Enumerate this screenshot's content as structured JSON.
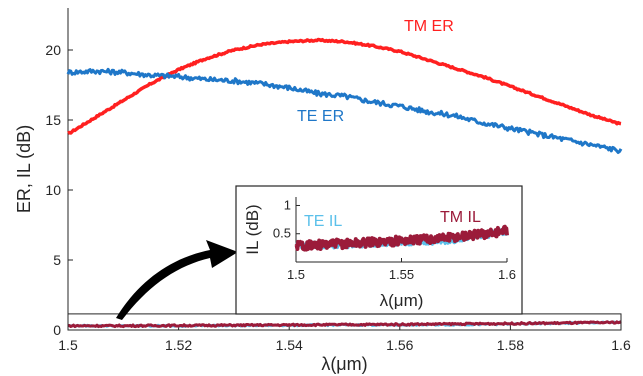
{
  "chart_data": [
    {
      "type": "line",
      "xlabel": "λ(μm)",
      "ylabel": "ER, IL (dB)",
      "xlim": [
        1.5,
        1.6
      ],
      "ylim": [
        0,
        23
      ],
      "xticks": [
        "1.5",
        "1.52",
        "1.54",
        "1.56",
        "1.58",
        "1.6"
      ],
      "yticks": [
        "0",
        "5",
        "10",
        "15",
        "20"
      ],
      "grid": false,
      "series": [
        {
          "name": "TM ER",
          "color": "#ff2020",
          "x": [
            1.5,
            1.505,
            1.51,
            1.515,
            1.52,
            1.525,
            1.53,
            1.535,
            1.54,
            1.545,
            1.55,
            1.555,
            1.56,
            1.565,
            1.57,
            1.575,
            1.58,
            1.585,
            1.59,
            1.595,
            1.6
          ],
          "y": [
            14.0,
            15.2,
            16.4,
            17.6,
            18.6,
            19.4,
            20.0,
            20.4,
            20.6,
            20.7,
            20.6,
            20.3,
            19.9,
            19.3,
            18.7,
            18.1,
            17.4,
            16.7,
            16.0,
            15.3,
            14.7
          ]
        },
        {
          "name": "TE ER",
          "color": "#1f77c8",
          "x": [
            1.5,
            1.505,
            1.51,
            1.515,
            1.52,
            1.525,
            1.53,
            1.535,
            1.54,
            1.545,
            1.55,
            1.555,
            1.56,
            1.565,
            1.57,
            1.575,
            1.58,
            1.585,
            1.59,
            1.595,
            1.6
          ],
          "y": [
            18.4,
            18.5,
            18.4,
            18.2,
            18.1,
            17.9,
            17.8,
            17.6,
            17.3,
            16.9,
            16.7,
            16.3,
            16.0,
            15.6,
            15.3,
            14.8,
            14.4,
            14.0,
            13.6,
            13.2,
            12.8
          ]
        },
        {
          "name": "TE IL",
          "color": "#5bc0ea",
          "x": [
            1.5,
            1.51,
            1.52,
            1.53,
            1.54,
            1.55,
            1.56,
            1.57,
            1.58,
            1.59,
            1.6
          ],
          "y": [
            0.3,
            0.3,
            0.3,
            0.32,
            0.34,
            0.36,
            0.36,
            0.38,
            0.42,
            0.48,
            0.55
          ]
        },
        {
          "name": "TM IL",
          "color": "#9b1b3a",
          "x": [
            1.5,
            1.51,
            1.52,
            1.53,
            1.54,
            1.55,
            1.56,
            1.57,
            1.58,
            1.59,
            1.6
          ],
          "y": [
            0.3,
            0.3,
            0.32,
            0.34,
            0.36,
            0.38,
            0.4,
            0.43,
            0.46,
            0.5,
            0.55
          ]
        }
      ]
    },
    {
      "type": "line",
      "xlabel": "λ(μm)",
      "ylabel": "IL (dB)",
      "xlim": [
        1.5,
        1.6
      ],
      "ylim": [
        0,
        1.15
      ],
      "xticks": [
        "1.5",
        "1.55",
        "1.6"
      ],
      "yticks": [
        "0.5",
        "1"
      ],
      "grid": false,
      "series": [
        {
          "name": "TE IL",
          "color": "#5bc0ea",
          "x": [
            1.5,
            1.51,
            1.52,
            1.53,
            1.54,
            1.55,
            1.56,
            1.57,
            1.58,
            1.59,
            1.6
          ],
          "y": [
            0.3,
            0.3,
            0.3,
            0.32,
            0.34,
            0.36,
            0.36,
            0.38,
            0.42,
            0.48,
            0.55
          ]
        },
        {
          "name": "TM IL",
          "color": "#9b1b3a",
          "x": [
            1.5,
            1.51,
            1.52,
            1.53,
            1.54,
            1.55,
            1.56,
            1.57,
            1.58,
            1.59,
            1.6
          ],
          "y": [
            0.3,
            0.3,
            0.32,
            0.34,
            0.36,
            0.38,
            0.4,
            0.43,
            0.46,
            0.5,
            0.55
          ]
        }
      ]
    }
  ]
}
